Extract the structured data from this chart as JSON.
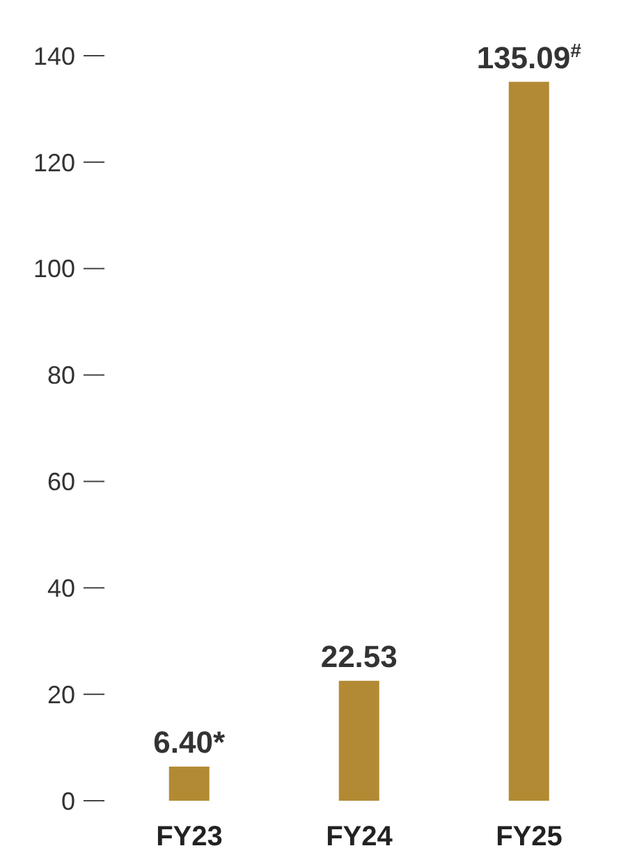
{
  "chart_data": {
    "type": "bar",
    "categories": [
      "FY23",
      "FY24",
      "FY25"
    ],
    "values": [
      6.4,
      22.53,
      135.09
    ],
    "value_labels": [
      "6.40*",
      "22.53",
      "135.09$^{#}$"
    ],
    "color": "#b38a34",
    "ylim": [
      0,
      140
    ],
    "yticks": [
      0,
      20,
      40,
      60,
      80,
      100,
      120,
      140
    ],
    "grid": false,
    "legend": false
  }
}
